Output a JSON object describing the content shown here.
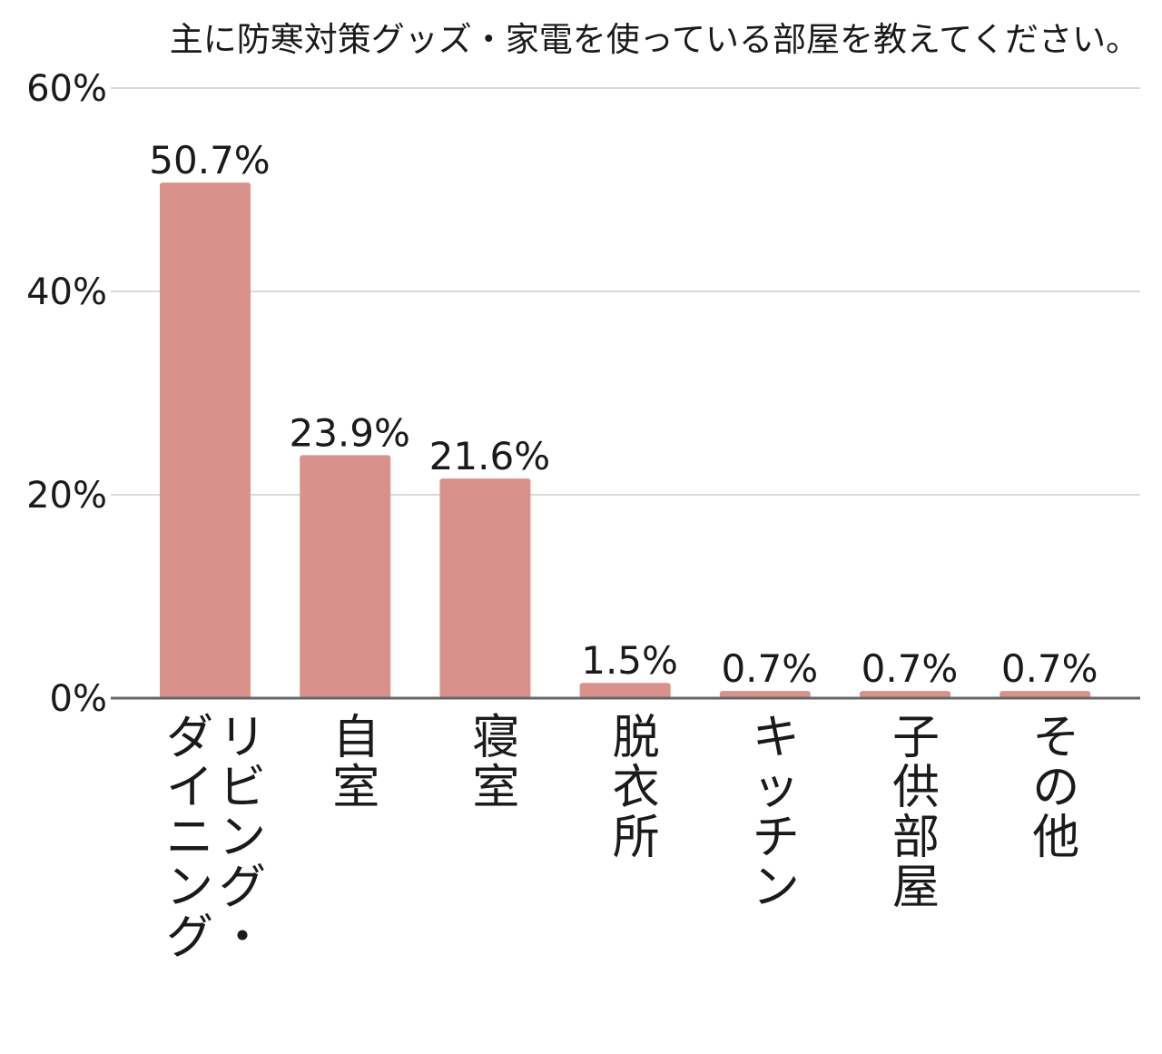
{
  "chart_data": {
    "type": "bar",
    "title": "主に防寒対策グッズ・家電を使っている部屋を教えてください。",
    "categories": [
      "リビング・ダイニング",
      "自室",
      "寝室",
      "脱衣所",
      "キッチン",
      "子供部屋",
      "その他"
    ],
    "category_lines": [
      [
        "リビング・",
        "ダイニング"
      ],
      [
        "自室"
      ],
      [
        "寝室"
      ],
      [
        "脱衣所"
      ],
      [
        "キッチン"
      ],
      [
        "子供部屋"
      ],
      [
        "その他"
      ]
    ],
    "values": [
      50.7,
      23.9,
      21.6,
      1.5,
      0.7,
      0.7,
      0.7
    ],
    "data_labels": [
      "50.7%",
      "23.9%",
      "21.6%",
      "1.5%",
      "0.7%",
      "0.7%",
      "0.7%"
    ],
    "yticks": [
      0,
      20,
      40,
      60
    ],
    "ytick_labels": [
      "0%",
      "20%",
      "40%",
      "60%"
    ],
    "ylim": [
      0,
      60
    ],
    "xlabel": "",
    "ylabel": "",
    "grid": true,
    "legend": "none",
    "bar_color": "#d9918c",
    "axis_color": "#666666",
    "grid_color": "#d9d9d9"
  }
}
